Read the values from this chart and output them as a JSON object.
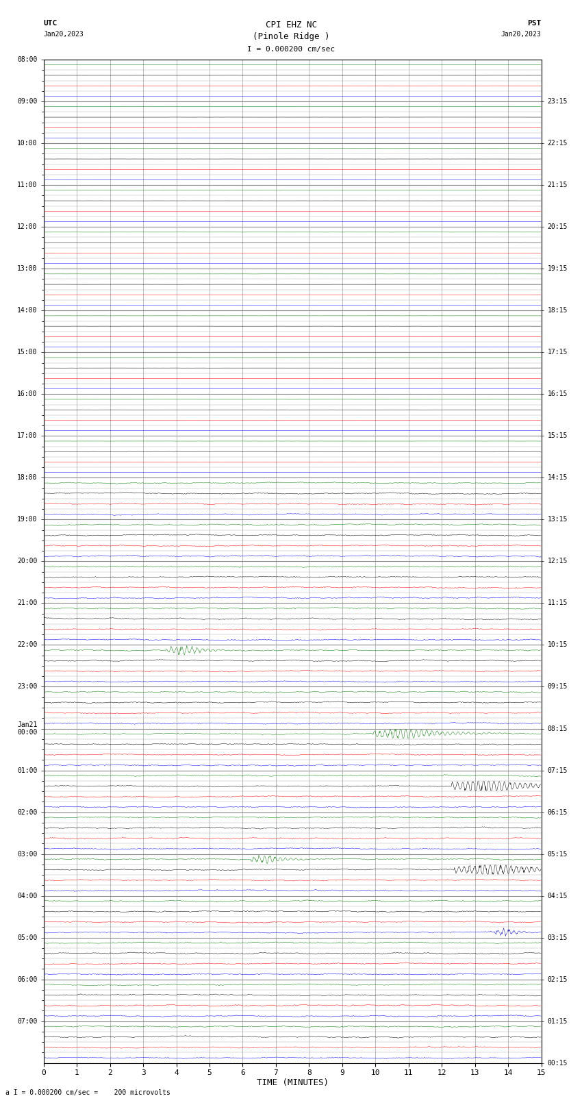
{
  "title_line1": "CPI EHZ NC",
  "title_line2": "(Pinole Ridge )",
  "scale_label": "I = 0.000200 cm/sec",
  "bottom_label": "a I = 0.000200 cm/sec =    200 microvolts",
  "xlabel": "TIME (MINUTES)",
  "utc_times": [
    "08:00",
    "09:00",
    "10:00",
    "11:00",
    "12:00",
    "13:00",
    "14:00",
    "15:00",
    "16:00",
    "17:00",
    "18:00",
    "19:00",
    "20:00",
    "21:00",
    "22:00",
    "23:00",
    "Jan21\n00:00",
    "01:00",
    "02:00",
    "03:00",
    "04:00",
    "05:00",
    "06:00",
    "07:00"
  ],
  "pst_times": [
    "00:15",
    "01:15",
    "02:15",
    "03:15",
    "04:15",
    "05:15",
    "06:15",
    "07:15",
    "08:15",
    "09:15",
    "10:15",
    "11:15",
    "12:15",
    "13:15",
    "14:15",
    "15:15",
    "16:15",
    "17:15",
    "18:15",
    "19:15",
    "20:15",
    "21:15",
    "22:15",
    "23:15"
  ],
  "n_hours": 24,
  "traces_per_hour": 4,
  "n_minutes": 15,
  "colors": [
    "#008000",
    "#000000",
    "#ff0000",
    "#0000ff"
  ],
  "bg_color": "#ffffff",
  "grid_color": "#aaaaaa",
  "quiet_amplitude": 0.004,
  "noise_amplitude": 0.06,
  "quiet_until_hour": 10,
  "events": [
    {
      "hour": 14,
      "trace": 0,
      "minute": 4.2,
      "color": "#ff0000",
      "amplitude": 0.38,
      "duration": 200
    },
    {
      "hour": 16,
      "trace": 0,
      "minute": 10.8,
      "color": "#008000",
      "amplitude": 0.55,
      "duration": 350
    },
    {
      "hour": 17,
      "trace": 1,
      "minute": 13.3,
      "color": "#ff0000",
      "amplitude": 0.65,
      "duration": 400
    },
    {
      "hour": 19,
      "trace": 0,
      "minute": 6.7,
      "color": "#008000",
      "amplitude": 0.38,
      "duration": 180
    },
    {
      "hour": 19,
      "trace": 1,
      "minute": 13.5,
      "color": "#ff0000",
      "amplitude": 0.55,
      "duration": 450
    },
    {
      "hour": 20,
      "trace": 3,
      "minute": 13.9,
      "color": "#0000ff",
      "amplitude": 0.28,
      "duration": 130
    }
  ]
}
